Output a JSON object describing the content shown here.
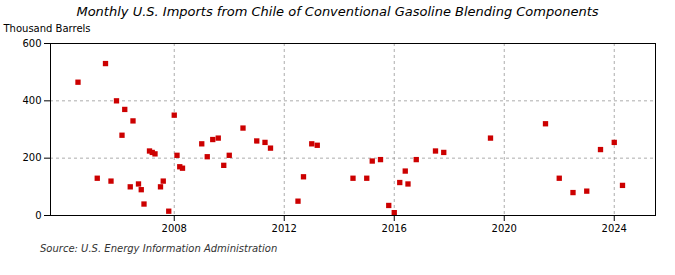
{
  "chart_data": {
    "type": "scatter",
    "title": "Monthly U.S. Imports from Chile of Conventional Gasoline Blending Components",
    "ylabel": "Thousand Barrels",
    "annotations": [
      "Source: U.S. Energy Information Administration"
    ],
    "color": "#cc0000",
    "marker": "square",
    "grid": true,
    "xlim": [
      2003.5,
      2025.5
    ],
    "xticks": [
      2008,
      2012,
      2016,
      2020,
      2024
    ],
    "ylim": [
      0,
      600
    ],
    "yticks": [
      0,
      200,
      400,
      600
    ],
    "x": [
      2004.5,
      2005.2,
      2005.5,
      2005.7,
      2005.9,
      2006.1,
      2006.2,
      2006.4,
      2006.5,
      2006.7,
      2006.8,
      2006.9,
      2007.1,
      2007.2,
      2007.3,
      2007.5,
      2007.6,
      2007.8,
      2008.0,
      2008.1,
      2008.2,
      2008.3,
      2009.0,
      2009.2,
      2009.4,
      2009.6,
      2009.8,
      2010.0,
      2010.5,
      2011.0,
      2011.3,
      2011.5,
      2012.5,
      2012.7,
      2013.0,
      2013.2,
      2014.5,
      2015.0,
      2015.2,
      2015.5,
      2015.8,
      2016.0,
      2016.2,
      2016.4,
      2016.5,
      2016.8,
      2017.5,
      2017.8,
      2019.5,
      2021.5,
      2022.0,
      2022.5,
      2023.0,
      2023.5,
      2024.0,
      2024.3
    ],
    "values": [
      465,
      130,
      530,
      120,
      400,
      280,
      370,
      100,
      330,
      110,
      90,
      40,
      225,
      220,
      215,
      100,
      120,
      15,
      350,
      210,
      170,
      165,
      250,
      205,
      265,
      270,
      175,
      210,
      305,
      260,
      255,
      235,
      50,
      135,
      250,
      245,
      130,
      130,
      190,
      195,
      35,
      10,
      115,
      155,
      110,
      195,
      225,
      220,
      270,
      320,
      130,
      80,
      85,
      230,
      255,
      105
    ]
  }
}
